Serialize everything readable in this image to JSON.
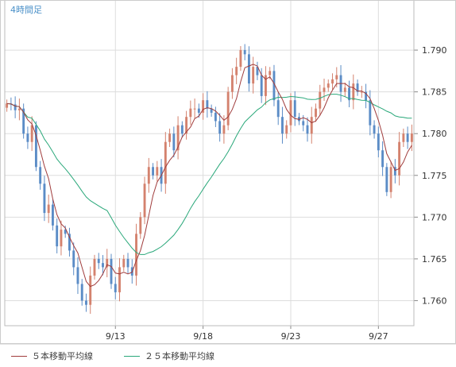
{
  "chart_data": {
    "type": "candlestick",
    "timeframe": "4時間足",
    "ylim": [
      1.757,
      1.796
    ],
    "y_ticks": [
      "1.760",
      "1.765",
      "1.770",
      "1.775",
      "1.780",
      "1.785",
      "1.790"
    ],
    "x_tick_labels": [
      {
        "label": "9/13",
        "index": 26
      },
      {
        "label": "9/18",
        "index": 47
      },
      {
        "label": "9/23",
        "index": 68
      },
      {
        "label": "9/27",
        "index": 89
      }
    ],
    "legend": [
      {
        "name": "５本移動平均線",
        "color": "#a03c3c"
      },
      {
        "name": "２５本移動平均線",
        "color": "#2aa87a"
      }
    ],
    "colors": {
      "up": "#d4826e",
      "down": "#5b8cc6",
      "ma5": "#a03c3c",
      "ma25": "#2aa87a",
      "grid": "#dddddd",
      "frame": "#bbbbbb"
    },
    "closes": [
      1.7836,
      1.7835,
      1.7828,
      1.783,
      1.78,
      1.779,
      1.781,
      1.776,
      1.774,
      1.7705,
      1.7715,
      1.769,
      1.7665,
      1.7685,
      1.768,
      1.766,
      1.764,
      1.762,
      1.76,
      1.7595,
      1.763,
      1.765,
      1.7645,
      1.764,
      1.765,
      1.762,
      1.761,
      1.764,
      1.765,
      1.764,
      1.763,
      1.768,
      1.77,
      1.774,
      1.776,
      1.775,
      1.776,
      1.774,
      1.779,
      1.78,
      1.778,
      1.781,
      1.78,
      1.782,
      1.783,
      1.783,
      1.7825,
      1.784,
      1.783,
      1.7825,
      1.7815,
      1.78,
      1.781,
      1.785,
      1.787,
      1.788,
      1.79,
      1.7895,
      1.786,
      1.788,
      1.787,
      1.7845,
      1.787,
      1.7875,
      1.784,
      1.782,
      1.78,
      1.781,
      1.784,
      1.782,
      1.7815,
      1.781,
      1.78,
      1.782,
      1.783,
      1.785,
      1.7855,
      1.786,
      1.7865,
      1.787,
      1.785,
      1.7855,
      1.784,
      1.786,
      1.785,
      1.785,
      1.784,
      1.781,
      1.78,
      1.778,
      1.776,
      1.773,
      1.776,
      1.775,
      1.779,
      1.78,
      1.779,
      1.78
    ]
  }
}
